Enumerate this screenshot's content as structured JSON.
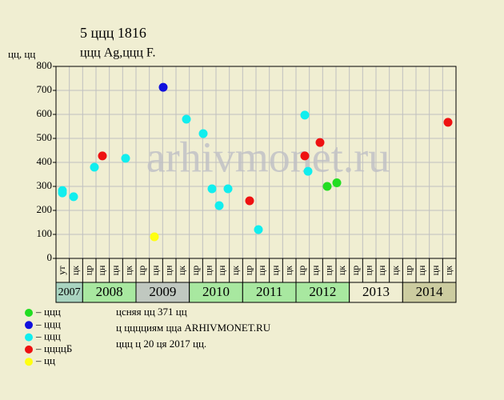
{
  "chart_data": {
    "type": "scatter",
    "title": "5 ццц 1816",
    "subtitle": "ццц Ag,ццц F.",
    "y_label": "цц, цц",
    "watermark": "arhivmonet.ru",
    "xlim": [
      0,
      30
    ],
    "ylim": [
      0,
      800
    ],
    "yticks": [
      0,
      100,
      200,
      300,
      400,
      500,
      600,
      700,
      800
    ],
    "grid": true,
    "years": [
      {
        "label": "2007",
        "color": "#a9d4c0",
        "months": [
          "ут",
          "цк"
        ]
      },
      {
        "label": "2008",
        "color": "#a8e8a0",
        "months": [
          "цр",
          "цн",
          "цн",
          "цк"
        ]
      },
      {
        "label": "2009",
        "color": "#c0c8c0",
        "months": [
          "цр",
          "цн",
          "цн",
          "цк"
        ]
      },
      {
        "label": "2010",
        "color": "#a8e8a0",
        "months": [
          "цр",
          "цн",
          "цн",
          "цк"
        ]
      },
      {
        "label": "2011",
        "color": "#a8e8a0",
        "months": [
          "цр",
          "цн",
          "цн",
          "цк"
        ]
      },
      {
        "label": "2012",
        "color": "#a8e8a0",
        "months": [
          "цр",
          "цн",
          "цн",
          "цк"
        ]
      },
      {
        "label": "2013",
        "color": "#f0eed2",
        "months": [
          "цр",
          "цн",
          "цн",
          "цк"
        ]
      },
      {
        "label": "2014",
        "color": "#cccca0",
        "months": [
          "цр",
          "цн",
          "цн",
          "цк"
        ]
      }
    ],
    "series": [
      {
        "name": "ццц",
        "color": "#22dd22",
        "x": [
          20.34,
          21.06
        ],
        "values": [
          300,
          315
        ]
      },
      {
        "name": "ццц",
        "color": "#1010dd",
        "x": [
          8.04
        ],
        "values": [
          713
        ]
      },
      {
        "name": "ццц",
        "color": "#11eeee",
        "x": [
          0.48,
          0.48,
          1.32,
          2.88,
          5.22,
          9.78,
          11.04,
          11.7,
          12.24,
          12.9,
          15.18,
          18.66,
          18.9
        ],
        "values": [
          283,
          273,
          257,
          380,
          417,
          580,
          520,
          290,
          220,
          290,
          120,
          597,
          363
        ]
      },
      {
        "name": "ццццБ",
        "color": "#ee1111",
        "x": [
          3.48,
          14.52,
          18.66,
          19.8,
          29.4
        ],
        "values": [
          427,
          240,
          427,
          483,
          567
        ]
      },
      {
        "name": "цц",
        "color": "#ffff11",
        "x": [
          7.38
        ],
        "values": [
          90
        ]
      }
    ],
    "notes": [
      "цcняя цц 371 цц",
      "ц цццциям цца ARHIVMONET.RU",
      "ццц ц 20 ця 2017 цц."
    ]
  }
}
